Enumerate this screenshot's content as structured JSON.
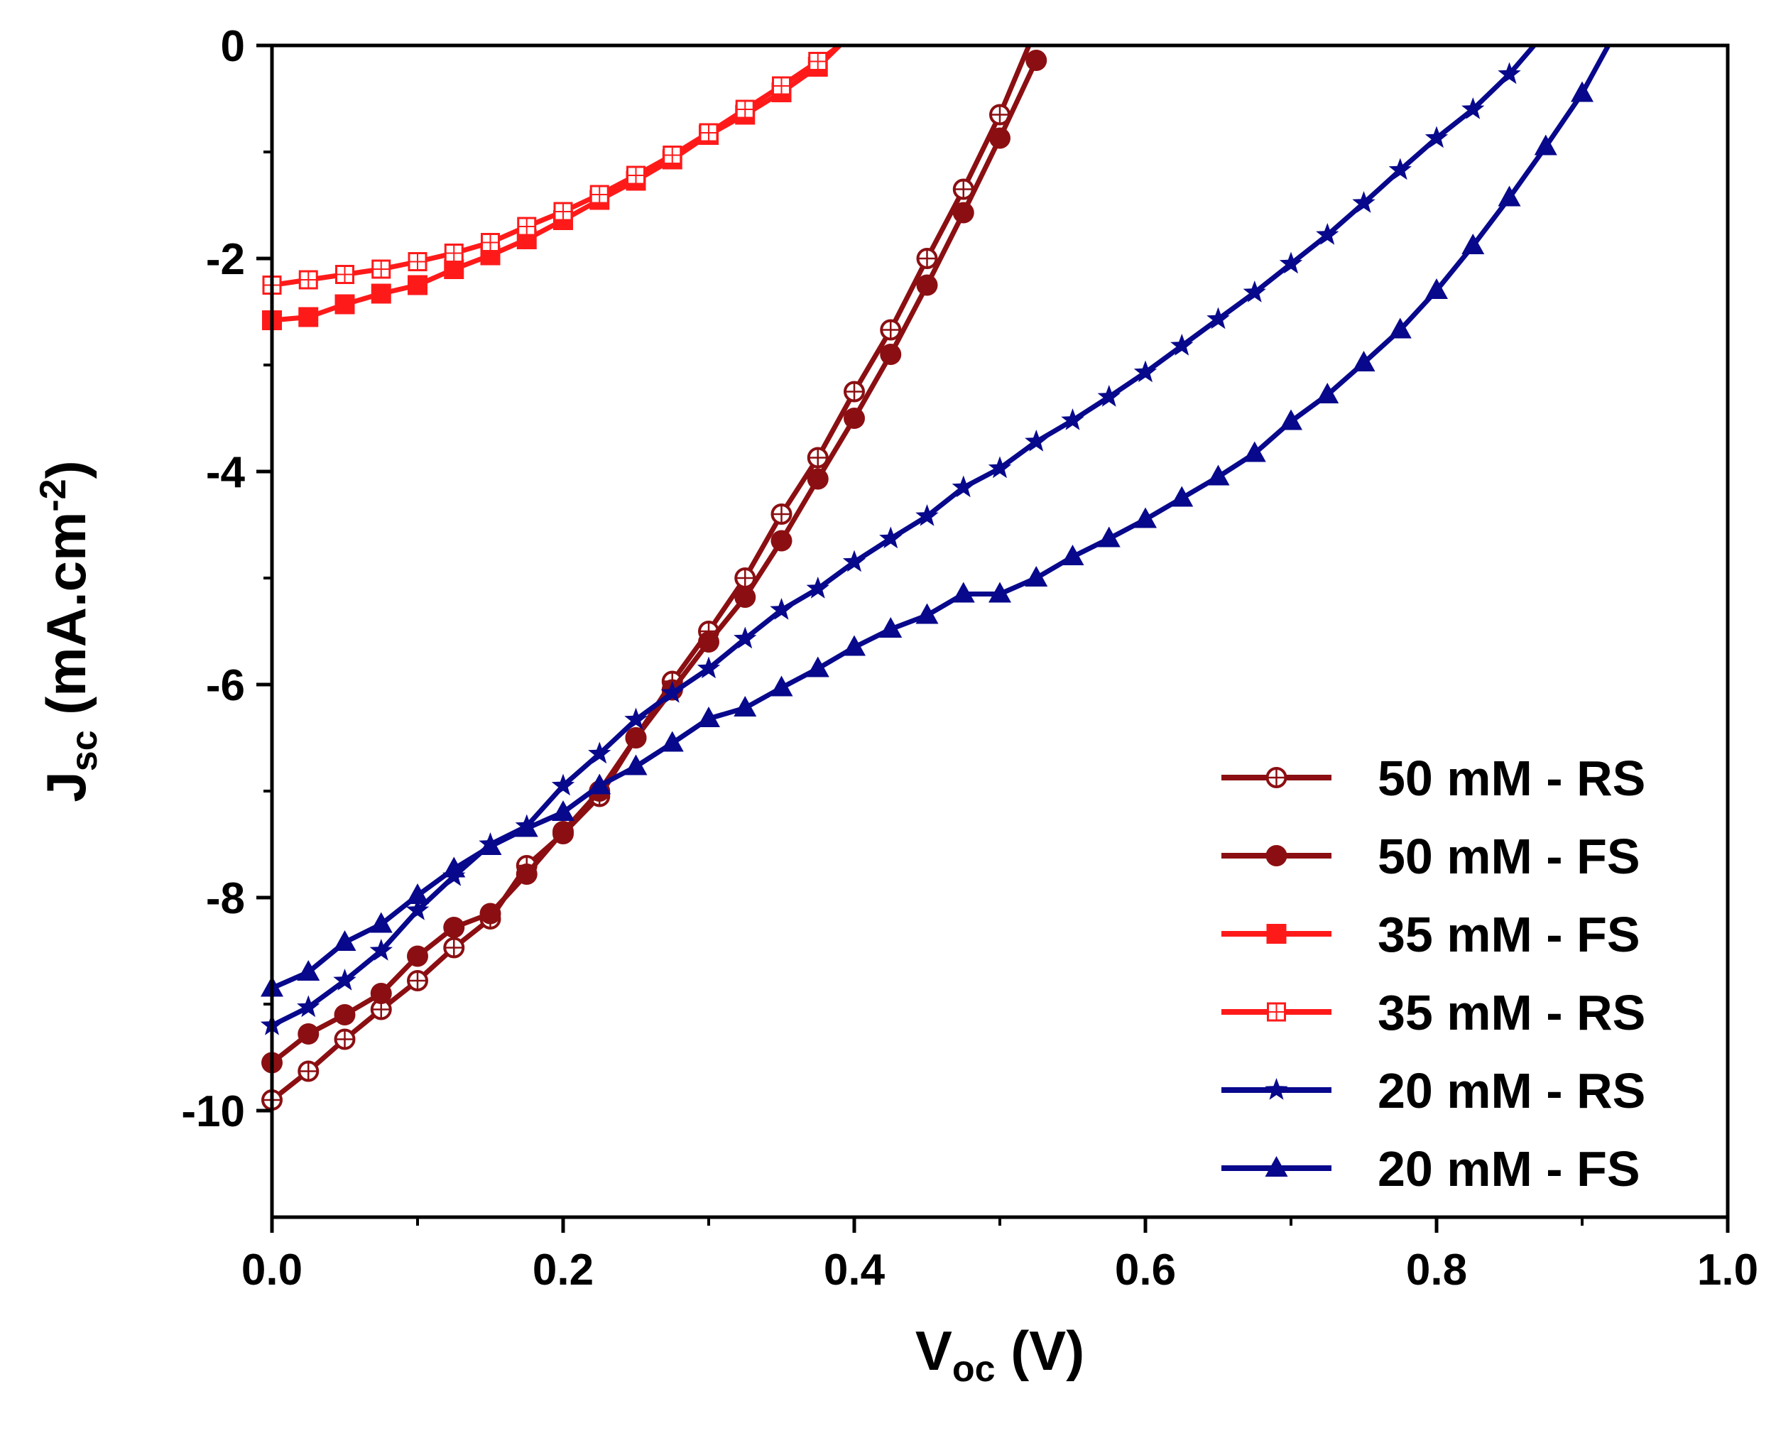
{
  "chart_data": {
    "type": "line",
    "title": "",
    "xlabel": {
      "main": "V",
      "sub": "oc",
      "unit": " (V)"
    },
    "ylabel": {
      "main": "J",
      "sub": "sc",
      "unit_pre": " (mA.cm",
      "unit_sup": "-2",
      "unit_post": ")"
    },
    "xlim": [
      0.0,
      1.0
    ],
    "ylim": [
      -11,
      0
    ],
    "x_ticks": [
      "0.0",
      "0.2",
      "0.4",
      "0.6",
      "0.8",
      "1.0"
    ],
    "y_ticks": [
      "0",
      "-2",
      "-4",
      "-6",
      "-8",
      "-10"
    ],
    "legend_position": "bottom-right",
    "grid": false,
    "series": [
      {
        "name": "50 mM - RS",
        "color": "#8b0f12",
        "marker": "open-circle",
        "points": [
          [
            0.0,
            -9.9
          ],
          [
            0.025,
            -9.63
          ],
          [
            0.05,
            -9.33
          ],
          [
            0.075,
            -9.05
          ],
          [
            0.1,
            -8.78
          ],
          [
            0.125,
            -8.47
          ],
          [
            0.15,
            -8.2
          ],
          [
            0.175,
            -7.7
          ],
          [
            0.2,
            -7.4
          ],
          [
            0.225,
            -7.05
          ],
          [
            0.25,
            -6.5
          ],
          [
            0.275,
            -5.97
          ],
          [
            0.3,
            -5.5
          ],
          [
            0.325,
            -5.0
          ],
          [
            0.35,
            -4.4
          ],
          [
            0.375,
            -3.87
          ],
          [
            0.4,
            -3.25
          ],
          [
            0.425,
            -2.67
          ],
          [
            0.45,
            -2.0
          ],
          [
            0.475,
            -1.35
          ],
          [
            0.5,
            -0.65
          ],
          [
            0.52,
            0.0
          ]
        ]
      },
      {
        "name": "50 mM - FS",
        "color": "#8b0f12",
        "marker": "filled-circle",
        "points": [
          [
            0.0,
            -9.55
          ],
          [
            0.025,
            -9.28
          ],
          [
            0.05,
            -9.1
          ],
          [
            0.075,
            -8.9
          ],
          [
            0.1,
            -8.55
          ],
          [
            0.125,
            -8.28
          ],
          [
            0.15,
            -8.15
          ],
          [
            0.175,
            -7.78
          ],
          [
            0.2,
            -7.38
          ],
          [
            0.225,
            -7.0
          ],
          [
            0.25,
            -6.5
          ],
          [
            0.275,
            -6.05
          ],
          [
            0.3,
            -5.6
          ],
          [
            0.325,
            -5.18
          ],
          [
            0.35,
            -4.65
          ],
          [
            0.375,
            -4.07
          ],
          [
            0.4,
            -3.5
          ],
          [
            0.425,
            -2.9
          ],
          [
            0.45,
            -2.25
          ],
          [
            0.475,
            -1.57
          ],
          [
            0.5,
            -0.87
          ],
          [
            0.525,
            -0.14
          ]
        ]
      },
      {
        "name": "35 mM - FS",
        "color": "#ff1a1a",
        "marker": "filled-square",
        "points": [
          [
            0.0,
            -2.58
          ],
          [
            0.025,
            -2.55
          ],
          [
            0.05,
            -2.43
          ],
          [
            0.075,
            -2.33
          ],
          [
            0.1,
            -2.25
          ],
          [
            0.125,
            -2.1
          ],
          [
            0.15,
            -1.97
          ],
          [
            0.175,
            -1.82
          ],
          [
            0.2,
            -1.64
          ],
          [
            0.225,
            -1.45
          ],
          [
            0.25,
            -1.27
          ],
          [
            0.275,
            -1.07
          ],
          [
            0.3,
            -0.84
          ],
          [
            0.325,
            -0.65
          ],
          [
            0.35,
            -0.44
          ],
          [
            0.375,
            -0.2
          ],
          [
            0.39,
            0.0
          ]
        ]
      },
      {
        "name": "35 mM - RS",
        "color": "#ff1a1a",
        "marker": "open-square",
        "points": [
          [
            0.0,
            -2.25
          ],
          [
            0.025,
            -2.2
          ],
          [
            0.05,
            -2.15
          ],
          [
            0.075,
            -2.1
          ],
          [
            0.1,
            -2.03
          ],
          [
            0.125,
            -1.95
          ],
          [
            0.15,
            -1.85
          ],
          [
            0.175,
            -1.7
          ],
          [
            0.2,
            -1.56
          ],
          [
            0.225,
            -1.4
          ],
          [
            0.25,
            -1.22
          ],
          [
            0.275,
            -1.03
          ],
          [
            0.3,
            -0.82
          ],
          [
            0.325,
            -0.6
          ],
          [
            0.35,
            -0.38
          ],
          [
            0.375,
            -0.15
          ],
          [
            0.39,
            0.0
          ]
        ]
      },
      {
        "name": "20 mM - RS",
        "color": "#08088c",
        "marker": "star",
        "points": [
          [
            0.0,
            -9.2
          ],
          [
            0.025,
            -9.03
          ],
          [
            0.05,
            -8.78
          ],
          [
            0.075,
            -8.5
          ],
          [
            0.1,
            -8.12
          ],
          [
            0.125,
            -7.8
          ],
          [
            0.15,
            -7.5
          ],
          [
            0.175,
            -7.33
          ],
          [
            0.2,
            -6.95
          ],
          [
            0.225,
            -6.65
          ],
          [
            0.25,
            -6.33
          ],
          [
            0.275,
            -6.08
          ],
          [
            0.3,
            -5.85
          ],
          [
            0.325,
            -5.57
          ],
          [
            0.35,
            -5.3
          ],
          [
            0.375,
            -5.1
          ],
          [
            0.4,
            -4.85
          ],
          [
            0.425,
            -4.63
          ],
          [
            0.45,
            -4.42
          ],
          [
            0.475,
            -4.15
          ],
          [
            0.5,
            -3.97
          ],
          [
            0.525,
            -3.72
          ],
          [
            0.55,
            -3.52
          ],
          [
            0.575,
            -3.3
          ],
          [
            0.6,
            -3.07
          ],
          [
            0.625,
            -2.82
          ],
          [
            0.65,
            -2.57
          ],
          [
            0.675,
            -2.32
          ],
          [
            0.7,
            -2.05
          ],
          [
            0.725,
            -1.78
          ],
          [
            0.75,
            -1.48
          ],
          [
            0.775,
            -1.17
          ],
          [
            0.8,
            -0.87
          ],
          [
            0.825,
            -0.6
          ],
          [
            0.85,
            -0.27
          ],
          [
            0.867,
            0.0
          ]
        ]
      },
      {
        "name": "20 mM - FS",
        "color": "#08088c",
        "marker": "filled-triangle",
        "points": [
          [
            0.0,
            -8.85
          ],
          [
            0.025,
            -8.7
          ],
          [
            0.05,
            -8.42
          ],
          [
            0.075,
            -8.25
          ],
          [
            0.1,
            -7.98
          ],
          [
            0.125,
            -7.73
          ],
          [
            0.15,
            -7.52
          ],
          [
            0.175,
            -7.35
          ],
          [
            0.2,
            -7.2
          ],
          [
            0.225,
            -6.95
          ],
          [
            0.25,
            -6.77
          ],
          [
            0.275,
            -6.55
          ],
          [
            0.3,
            -6.32
          ],
          [
            0.325,
            -6.22
          ],
          [
            0.35,
            -6.03
          ],
          [
            0.375,
            -5.85
          ],
          [
            0.4,
            -5.65
          ],
          [
            0.425,
            -5.48
          ],
          [
            0.45,
            -5.35
          ],
          [
            0.475,
            -5.15
          ],
          [
            0.5,
            -5.15
          ],
          [
            0.525,
            -5.0
          ],
          [
            0.55,
            -4.8
          ],
          [
            0.575,
            -4.63
          ],
          [
            0.6,
            -4.45
          ],
          [
            0.625,
            -4.25
          ],
          [
            0.65,
            -4.05
          ],
          [
            0.675,
            -3.83
          ],
          [
            0.7,
            -3.53
          ],
          [
            0.725,
            -3.28
          ],
          [
            0.75,
            -2.98
          ],
          [
            0.775,
            -2.67
          ],
          [
            0.8,
            -2.3
          ],
          [
            0.825,
            -1.88
          ],
          [
            0.85,
            -1.43
          ],
          [
            0.875,
            -0.95
          ],
          [
            0.9,
            -0.45
          ],
          [
            0.918,
            0.0
          ]
        ]
      }
    ]
  }
}
